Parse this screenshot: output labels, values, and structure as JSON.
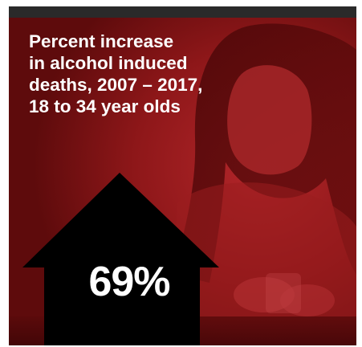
{
  "headline": {
    "lines": [
      "Percent increase",
      "in alcohol induced",
      "deaths, 2007 – 2017,",
      "18 to 34 year olds"
    ]
  },
  "stat": {
    "value": "69%",
    "direction_icon": "up-arrow-icon"
  },
  "colors": {
    "background_red": "#7c1112",
    "arrow": "#000000",
    "text": "#ffffff"
  }
}
